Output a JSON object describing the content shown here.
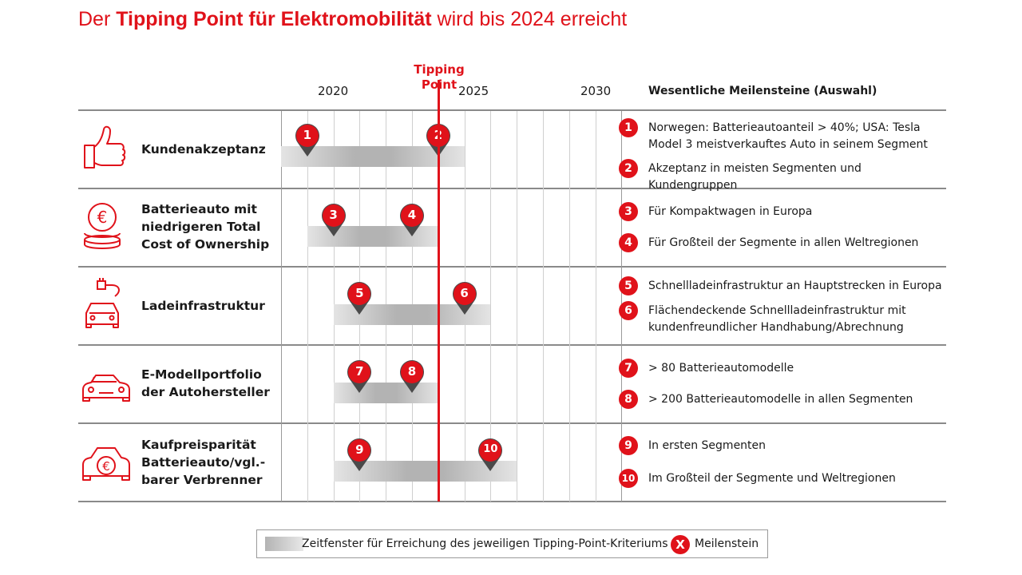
{
  "title": {
    "part1": "Der ",
    "part2_bold": "Tipping Point für Elektromobilität",
    "part3": " wird bis 2024 erreicht"
  },
  "tipping_point": {
    "line1": "Tipping",
    "line2": "Point",
    "year": 2024
  },
  "timeline": {
    "start": 2018,
    "end": 2031,
    "labels": [
      "2020",
      "2025",
      "2030"
    ]
  },
  "milestones_header": "Wesentliche Meilensteine (Auswahl)",
  "rows": [
    {
      "criterion": [
        "Kundenakzeptanz"
      ],
      "icon": "thumbs-up-icon",
      "window": [
        2018,
        2025
      ],
      "pins": [
        {
          "num": "1",
          "year": 2019
        },
        {
          "num": "2",
          "year": 2024
        }
      ],
      "milestones": [
        {
          "num": "1",
          "text": "Norwegen: Batterieautoanteil > 40%; USA: Tesla Model 3 meistverkauftes Auto in seinem Segment"
        },
        {
          "num": "2",
          "text": "Akzeptanz in meisten Segmenten und Kundengruppen"
        }
      ]
    },
    {
      "criterion": [
        "Batterieauto mit",
        "niedrigeren Total",
        "Cost of Ownership"
      ],
      "icon": "euro-coins-icon",
      "window": [
        2019,
        2024
      ],
      "pins": [
        {
          "num": "3",
          "year": 2020
        },
        {
          "num": "4",
          "year": 2023
        }
      ],
      "milestones": [
        {
          "num": "3",
          "text": "Für Kompaktwagen in Europa"
        },
        {
          "num": "4",
          "text": "Für Großteil der Segmente in allen Weltregionen"
        }
      ]
    },
    {
      "criterion": [
        "Ladeinfrastruktur"
      ],
      "icon": "charging-car-icon",
      "window": [
        2020,
        2026
      ],
      "pins": [
        {
          "num": "5",
          "year": 2021
        },
        {
          "num": "6",
          "year": 2025
        }
      ],
      "milestones": [
        {
          "num": "5",
          "text": "Schnellladeinfrastruktur an Hauptstrecken in Europa"
        },
        {
          "num": "6",
          "text": "Flächendeckende Schnellladeinfrastruktur mit kundenfreundlicher Handhabung/Abrechnung"
        }
      ]
    },
    {
      "criterion": [
        "E-Modellportfolio",
        "der Autohersteller"
      ],
      "icon": "car-icon",
      "window": [
        2020,
        2024
      ],
      "pins": [
        {
          "num": "7",
          "year": 2021
        },
        {
          "num": "8",
          "year": 2023
        }
      ],
      "milestones": [
        {
          "num": "7",
          "text": "> 80 Batterieautomodelle"
        },
        {
          "num": "8",
          "text": "> 200 Batterieautomodelle in allen Segmenten"
        }
      ]
    },
    {
      "criterion": [
        "Kaufpreisparität",
        "Batterieauto/vgl.-",
        "barer Verbrenner"
      ],
      "icon": "euro-car-icon",
      "window": [
        2020,
        2027
      ],
      "pins": [
        {
          "num": "9",
          "year": 2021
        },
        {
          "num": "10",
          "year": 2026
        }
      ],
      "milestones": [
        {
          "num": "9",
          "text": "In ersten Segmenten"
        },
        {
          "num": "10",
          "text": "Im Großteil der Segmente und Weltregionen"
        }
      ]
    }
  ],
  "legend": {
    "window_label": "Zeitfenster für Erreichung des jeweiligen Tipping-Point-Kriteriums",
    "symbol": "X",
    "milestone_label": "Meilenstein"
  },
  "colors": {
    "accent": "#e0121a",
    "bar": "#b3b3b3",
    "rule": "#8a8a8a"
  }
}
